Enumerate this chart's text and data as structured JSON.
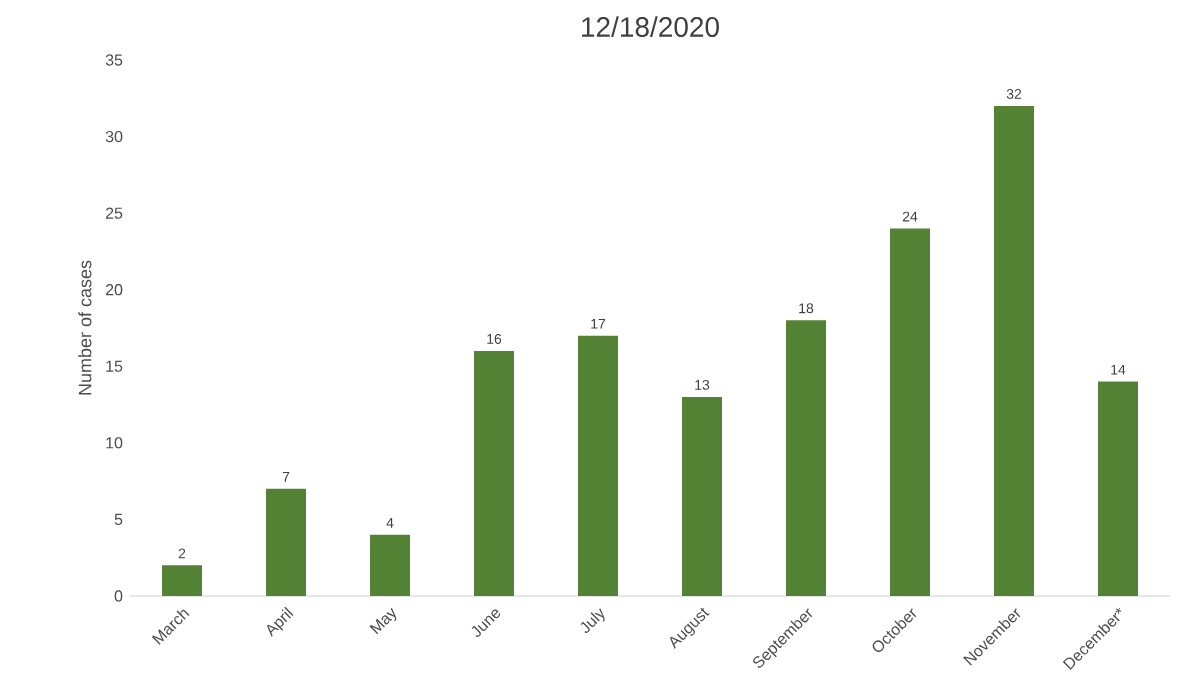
{
  "chart_data": {
    "type": "bar",
    "title": "12/18/2020",
    "ylabel": "Number of cases",
    "categories": [
      "March",
      "April",
      "May",
      "June",
      "July",
      "August",
      "September",
      "October",
      "November",
      "December*"
    ],
    "values": [
      2,
      7,
      4,
      16,
      17,
      13,
      18,
      24,
      32,
      14
    ],
    "color": "#548235",
    "ylim": [
      0,
      35
    ],
    "yticks": [
      0,
      5,
      10,
      15,
      20,
      25,
      30,
      35
    ],
    "data_labels": true
  }
}
